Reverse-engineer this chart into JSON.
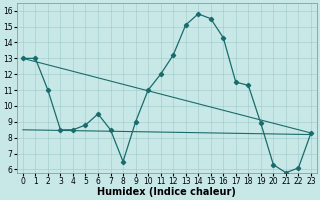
{
  "xlabel": "Humidex (Indice chaleur)",
  "background_color": "#c8e8e8",
  "line_color": "#1a6b6b",
  "xlim": [
    -0.5,
    23.5
  ],
  "ylim": [
    5.8,
    16.5
  ],
  "yticks": [
    6,
    7,
    8,
    9,
    10,
    11,
    12,
    13,
    14,
    15,
    16
  ],
  "xticks": [
    0,
    1,
    2,
    3,
    4,
    5,
    6,
    7,
    8,
    9,
    10,
    11,
    12,
    13,
    14,
    15,
    16,
    17,
    18,
    19,
    20,
    21,
    22,
    23
  ],
  "curve1_x": [
    0,
    1,
    2,
    3,
    4,
    5,
    6,
    7,
    8,
    9,
    10,
    11,
    12,
    13,
    14,
    15,
    16,
    17,
    18,
    19,
    20,
    21,
    22,
    23
  ],
  "curve1_y": [
    13,
    13,
    11,
    8.5,
    8.5,
    8.8,
    9.5,
    8.5,
    6.5,
    9.0,
    11.0,
    12.0,
    13.2,
    15.1,
    15.8,
    15.5,
    14.3,
    11.5,
    11.3,
    8.9,
    6.3,
    5.8,
    6.1,
    8.3
  ],
  "line1_x": [
    0,
    23
  ],
  "line1_y": [
    13.0,
    8.3
  ],
  "line2_x": [
    0,
    23
  ],
  "line2_y": [
    8.5,
    8.2
  ],
  "grid_color": "#a0c8c8",
  "marker": "D",
  "marker_size": 2.2,
  "fontsize_tick": 5.5,
  "fontsize_label": 7
}
